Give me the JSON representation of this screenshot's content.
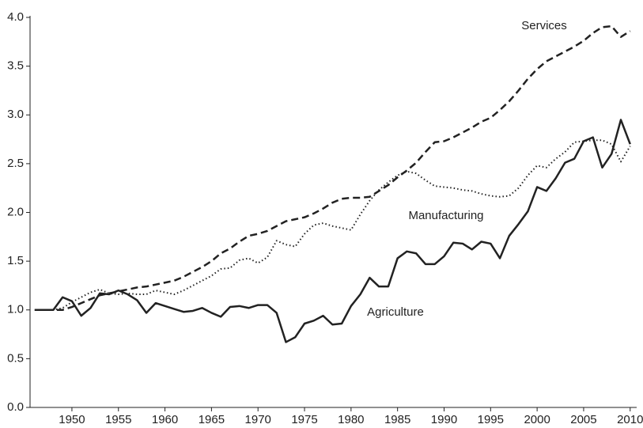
{
  "chart_data": {
    "type": "line",
    "x": [
      1946,
      1947,
      1948,
      1949,
      1950,
      1951,
      1952,
      1953,
      1954,
      1955,
      1956,
      1957,
      1958,
      1959,
      1960,
      1961,
      1962,
      1963,
      1964,
      1965,
      1966,
      1967,
      1968,
      1969,
      1970,
      1971,
      1972,
      1973,
      1974,
      1975,
      1976,
      1977,
      1978,
      1979,
      1980,
      1981,
      1982,
      1983,
      1984,
      1985,
      1986,
      1987,
      1988,
      1989,
      1990,
      1991,
      1992,
      1993,
      1994,
      1995,
      1996,
      1997,
      1998,
      1999,
      2000,
      2001,
      2002,
      2003,
      2004,
      2005,
      2006,
      2007,
      2008,
      2009,
      2010
    ],
    "series": [
      {
        "name": "Services",
        "color": "#222222",
        "style": "dashed",
        "values": [
          1.0,
          1.0,
          1.0,
          1.0,
          1.03,
          1.07,
          1.11,
          1.15,
          1.17,
          1.19,
          1.21,
          1.23,
          1.24,
          1.26,
          1.28,
          1.3,
          1.34,
          1.39,
          1.44,
          1.5,
          1.58,
          1.63,
          1.7,
          1.76,
          1.78,
          1.81,
          1.86,
          1.91,
          1.93,
          1.95,
          1.99,
          2.04,
          2.1,
          2.14,
          2.15,
          2.15,
          2.16,
          2.22,
          2.28,
          2.36,
          2.43,
          2.51,
          2.62,
          2.72,
          2.73,
          2.77,
          2.82,
          2.87,
          2.93,
          2.97,
          3.05,
          3.14,
          3.25,
          3.37,
          3.47,
          3.55,
          3.6,
          3.65,
          3.7,
          3.76,
          3.84,
          3.9,
          3.91,
          3.8,
          3.86
        ]
      },
      {
        "name": "Manufacturing",
        "color": "#222222",
        "style": "dotted",
        "values": [
          1.0,
          1.0,
          1.0,
          1.02,
          1.08,
          1.13,
          1.18,
          1.21,
          1.17,
          1.16,
          1.17,
          1.16,
          1.16,
          1.2,
          1.18,
          1.16,
          1.2,
          1.25,
          1.3,
          1.35,
          1.42,
          1.43,
          1.51,
          1.53,
          1.48,
          1.54,
          1.71,
          1.67,
          1.65,
          1.78,
          1.87,
          1.89,
          1.86,
          1.84,
          1.82,
          1.98,
          2.12,
          2.23,
          2.31,
          2.38,
          2.42,
          2.4,
          2.33,
          2.27,
          2.26,
          2.25,
          2.23,
          2.22,
          2.19,
          2.17,
          2.16,
          2.17,
          2.25,
          2.38,
          2.48,
          2.46,
          2.55,
          2.62,
          2.72,
          2.73,
          2.74,
          2.74,
          2.7,
          2.52,
          2.68
        ]
      },
      {
        "name": "Agriculture",
        "color": "#222222",
        "style": "solid",
        "values": [
          1.0,
          1.0,
          1.0,
          1.13,
          1.09,
          0.94,
          1.02,
          1.17,
          1.16,
          1.2,
          1.16,
          1.1,
          0.97,
          1.07,
          1.04,
          1.01,
          0.98,
          0.99,
          1.02,
          0.97,
          0.93,
          1.03,
          1.04,
          1.02,
          1.05,
          1.05,
          0.97,
          0.67,
          0.72,
          0.86,
          0.89,
          0.94,
          0.85,
          0.86,
          1.04,
          1.16,
          1.33,
          1.24,
          1.24,
          1.53,
          1.6,
          1.58,
          1.47,
          1.47,
          1.55,
          1.69,
          1.68,
          1.62,
          1.7,
          1.68,
          1.53,
          1.76,
          1.88,
          2.01,
          2.26,
          2.22,
          2.35,
          2.51,
          2.55,
          2.73,
          2.77,
          2.46,
          2.6,
          2.95,
          2.7
        ]
      }
    ],
    "xlim": [
      1945.5,
      2010.7
    ],
    "xticks": [
      1950,
      1955,
      1960,
      1965,
      1970,
      1975,
      1980,
      1985,
      1990,
      1995,
      2000,
      2005,
      2010
    ],
    "ylim": [
      0,
      4
    ],
    "yticks": [
      {
        "value": 0,
        "label": "0.0"
      },
      {
        "value": 0.5,
        "label": "0.5"
      },
      {
        "value": 1,
        "label": "1.0"
      },
      {
        "value": 1.5,
        "label": "1.5"
      },
      {
        "value": 2,
        "label": "2.0"
      },
      {
        "value": 2.5,
        "label": "2.5"
      },
      {
        "value": 3,
        "label": "3.0"
      },
      {
        "value": 3.5,
        "label": "3.5"
      },
      {
        "value": 4,
        "label": "4.0"
      }
    ],
    "grid": false
  }
}
